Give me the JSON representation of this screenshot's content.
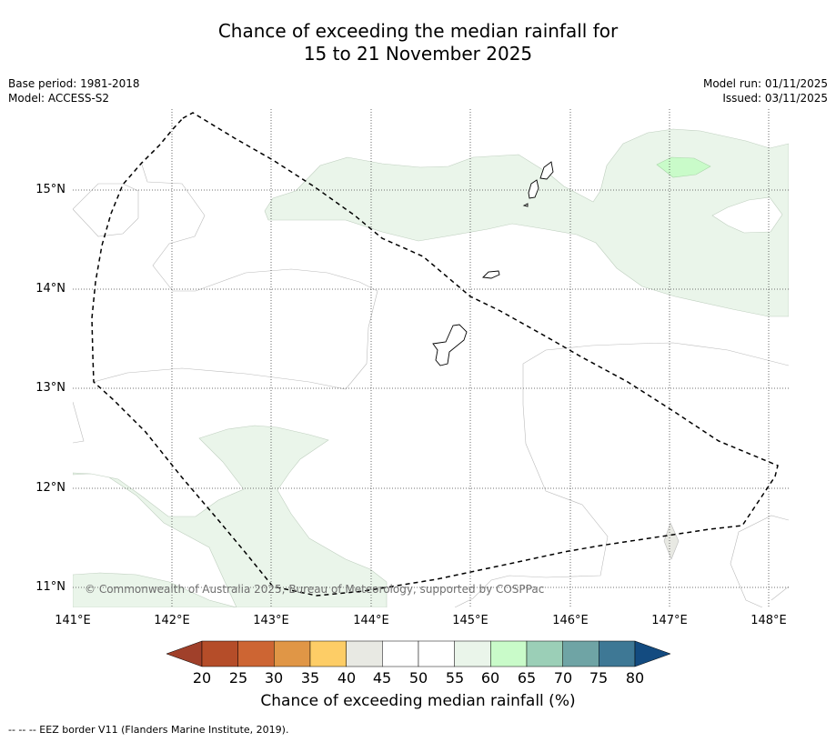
{
  "title": {
    "line1": "Chance of exceeding the median rainfall for",
    "line2": "15 to 21 November 2025"
  },
  "meta": {
    "base_period": "Base period: 1981-2018",
    "model": "Model: ACCESS-S2",
    "model_run": "Model run: 01/11/2025",
    "issued": "Issued: 03/11/2025"
  },
  "map": {
    "lat_labels": [
      "15°N",
      "14°N",
      "13°N",
      "12°N",
      "11°N"
    ],
    "lon_labels": [
      "141°E",
      "142°E",
      "143°E",
      "144°E",
      "145°E",
      "146°E",
      "147°E",
      "148°E"
    ],
    "copyright": "© Commonwealth of Australia 2025, Bureau of Meteorology, supported by COSPPac"
  },
  "legend": {
    "title": "Chance of exceeding median rainfall (%)",
    "tick_labels": [
      "20",
      "25",
      "30",
      "35",
      "40",
      "45",
      "50",
      "55",
      "60",
      "65",
      "70",
      "75",
      "80"
    ],
    "colors": {
      "below_20": "#a0402a",
      "20_25": "#b54d29",
      "25_30": "#cd6533",
      "30_35": "#e09646",
      "35_40": "#fdcd66",
      "40_45": "#e8e9e3",
      "45_50": "#ffffff",
      "50_55": "#ffffff",
      "55_60": "#eaf5ea",
      "60_65": "#c9fbc9",
      "65_70": "#9bcfb7",
      "70_75": "#6fa4a5",
      "75_80": "#3e7895",
      "above_80": "#134b80"
    },
    "eez_note": "-- -- -- EEZ border V11 (Flanders Marine Institute, 2019)."
  }
}
